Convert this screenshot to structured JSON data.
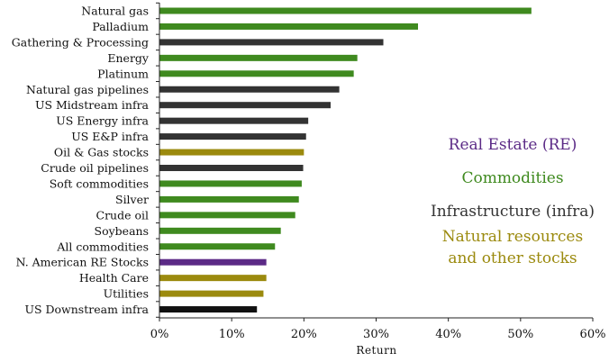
{
  "colors": {
    "real_estate": "#5b2a86",
    "commodities": "#3f8a1f",
    "infrastructure": "#333333",
    "natural_resources": "#9b8a0e",
    "downstream": "#111111",
    "axis": "#222222"
  },
  "legend": [
    {
      "key": "real_estate",
      "label": "Real Estate (RE)"
    },
    {
      "key": "commodities",
      "label": "Commodities"
    },
    {
      "key": "infrastructure",
      "label": "Infrastructure (infra)"
    },
    {
      "key": "natural_resources",
      "label": "Natural resources"
    },
    {
      "key": "natural_resources",
      "label": "and other stocks"
    }
  ],
  "chart_data": {
    "type": "bar",
    "orientation": "horizontal",
    "xlabel": "Return",
    "xlim": [
      0,
      60
    ],
    "xticks": [
      0,
      10,
      20,
      30,
      40,
      50,
      60
    ],
    "xtick_labels": [
      "0%",
      "10%",
      "20%",
      "30%",
      "40%",
      "50%",
      "60%"
    ],
    "grid": false,
    "legend_position": "right",
    "categories": [
      "Natural gas",
      "Palladium",
      "Gathering & Processing",
      "Energy",
      "Platinum",
      "Natural gas pipelines",
      "US Midstream infra",
      "US Energy infra",
      "US E&P infra",
      "Oil & Gas stocks",
      "Crude oil pipelines",
      "Soft commodities",
      "Silver",
      "Crude oil",
      "Soybeans",
      "All commodities",
      "N. American RE Stocks",
      "Health Care",
      "Utilities",
      "US Downstream infra"
    ],
    "values": [
      51.5,
      35.8,
      31.0,
      27.4,
      26.9,
      24.9,
      23.7,
      20.6,
      20.3,
      20.0,
      19.9,
      19.7,
      19.3,
      18.8,
      16.8,
      16.0,
      14.8,
      14.8,
      14.4,
      13.5
    ],
    "groups": [
      "commodities",
      "commodities",
      "infrastructure",
      "commodities",
      "commodities",
      "infrastructure",
      "infrastructure",
      "infrastructure",
      "infrastructure",
      "natural_resources",
      "infrastructure",
      "commodities",
      "commodities",
      "commodities",
      "commodities",
      "commodities",
      "real_estate",
      "natural_resources",
      "natural_resources",
      "downstream"
    ]
  }
}
